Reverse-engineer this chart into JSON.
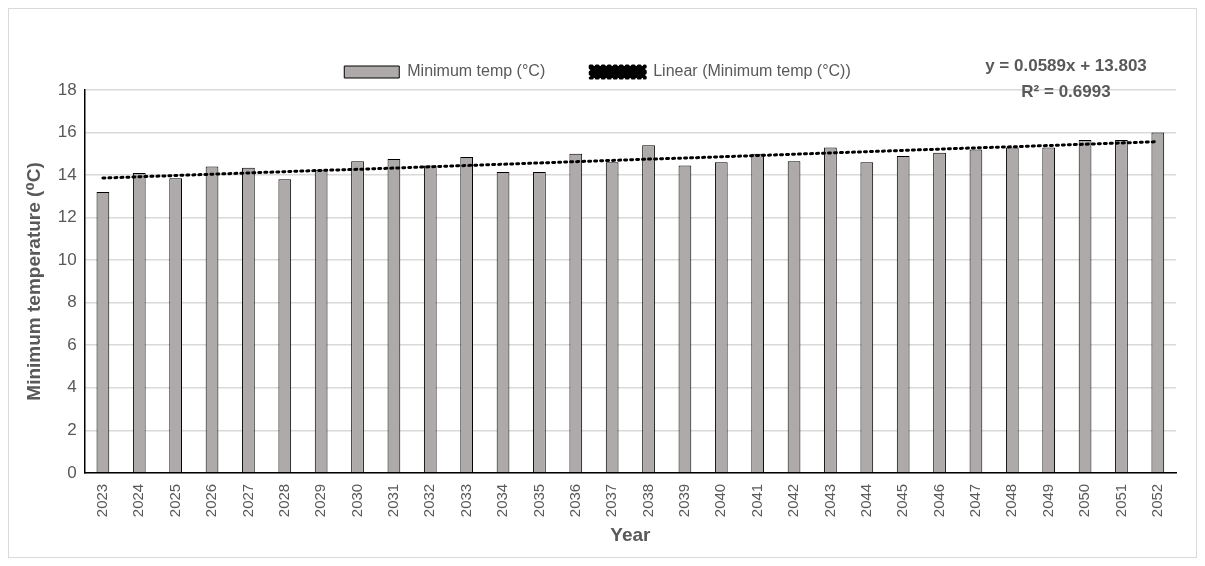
{
  "chart_data": {
    "type": "bar",
    "xlabel": "Year",
    "ylabel": "Minimum temperature (⁰C)",
    "categories": [
      "2023",
      "2024",
      "2025",
      "2026",
      "2027",
      "2028",
      "2029",
      "2030",
      "2031",
      "2032",
      "2033",
      "2034",
      "2035",
      "2036",
      "2037",
      "2038",
      "2039",
      "2040",
      "2041",
      "2042",
      "2043",
      "2044",
      "2045",
      "2046",
      "2047",
      "2048",
      "2049",
      "2050",
      "2051",
      "2052"
    ],
    "series": [
      {
        "name": "Minimum temp (°C)",
        "color": "#aeaaaa",
        "values": [
          13.2,
          14.1,
          13.85,
          14.4,
          14.35,
          13.8,
          14.25,
          14.65,
          14.75,
          14.45,
          14.85,
          14.15,
          14.15,
          15.0,
          14.6,
          15.4,
          14.45,
          14.6,
          15.0,
          14.65,
          15.3,
          14.6,
          14.9,
          15.05,
          15.2,
          15.3,
          15.3,
          15.65,
          15.65,
          16.0
        ]
      },
      {
        "name": "Linear (Minimum temp (°C))",
        "type": "line",
        "color": "#000000",
        "line_style": "dotted",
        "marker": "none",
        "values": [
          13.86,
          13.92,
          13.98,
          14.04,
          14.1,
          14.16,
          14.22,
          14.27,
          14.33,
          14.39,
          14.45,
          14.51,
          14.57,
          14.63,
          14.69,
          14.75,
          14.8,
          14.86,
          14.92,
          14.98,
          15.04,
          15.1,
          15.16,
          15.22,
          15.28,
          15.33,
          15.39,
          15.45,
          15.51,
          15.57
        ]
      }
    ],
    "annotations": [
      "y = 0.0589x + 13.803",
      "R² = 0.6993"
    ],
    "ylim": [
      0,
      18
    ],
    "yticks": [
      0,
      2,
      4,
      6,
      8,
      10,
      12,
      14,
      16,
      18
    ],
    "grid": "y",
    "legend": "top"
  }
}
